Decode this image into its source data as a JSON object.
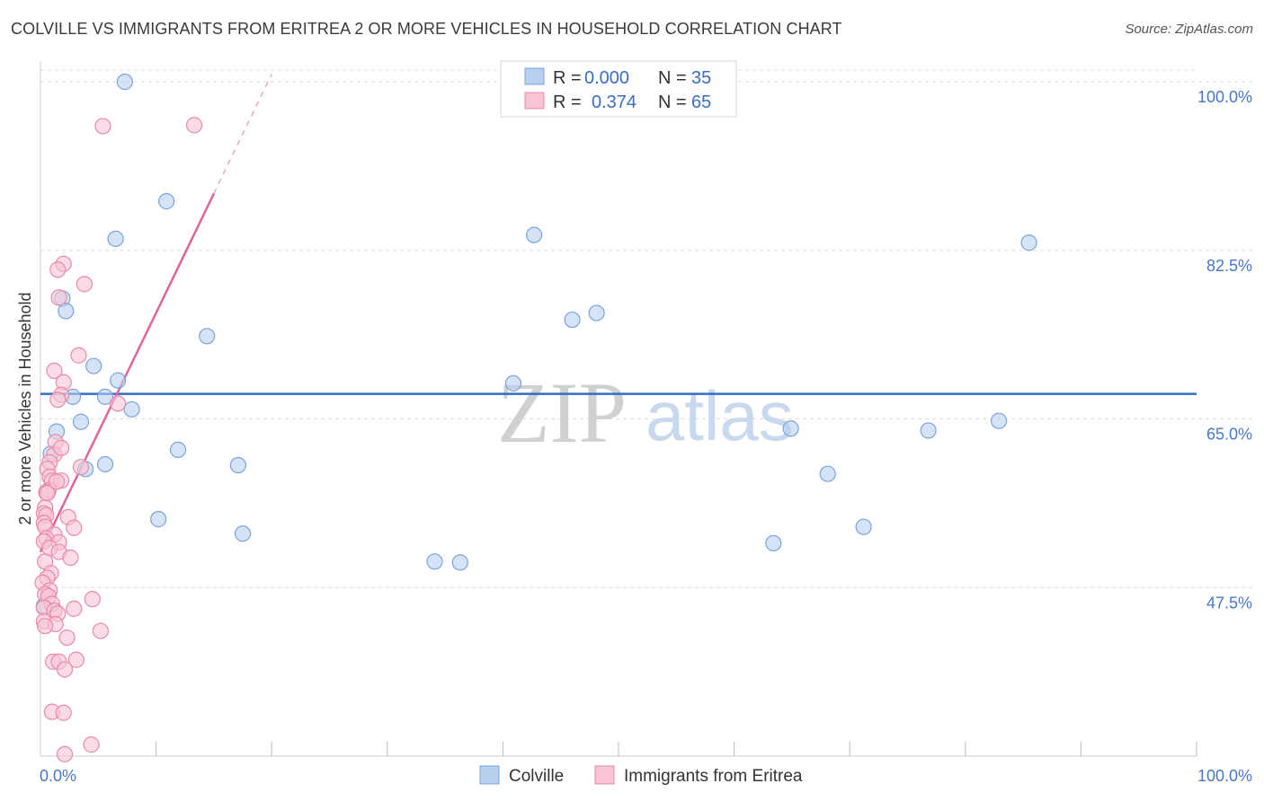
{
  "title": "COLVILLE VS IMMIGRANTS FROM ERITREA 2 OR MORE VEHICLES IN HOUSEHOLD CORRELATION CHART",
  "source": "Source: ZipAtlas.com",
  "watermark": {
    "part1": "ZIP",
    "part2": "atlas"
  },
  "colors": {
    "blue_fill": "#b8d0f0",
    "blue_stroke": "#7aa3e0",
    "blue_line": "#2f6fc8",
    "pink_fill": "#f8c4d4",
    "pink_stroke": "#e88aa8",
    "pink_line": "#e0649a",
    "grid": "#dddddd",
    "tick_text": "#4a78c8"
  },
  "legend": {
    "r_label": "R =",
    "n_label": "N =",
    "rows": [
      {
        "r": "0.000",
        "n": "35"
      },
      {
        "r": "0.374",
        "n": "65"
      }
    ]
  },
  "bottom_legend": [
    "Colville",
    "Immigrants from Eritrea"
  ],
  "chart_data": {
    "type": "scatter",
    "xlabel": "",
    "ylabel": "2 or more Vehicles in Household",
    "xlim": [
      0,
      100
    ],
    "ylim": [
      30,
      101.5
    ],
    "x_tick_labels": [
      "0.0%",
      "100.0%"
    ],
    "y_ticks": [
      47.5,
      65.0,
      82.5,
      100.0
    ],
    "y_tick_labels": [
      "47.5%",
      "65.0%",
      "82.5%",
      "100.0%"
    ],
    "grid": true,
    "series": [
      {
        "name": "Colville",
        "points": [
          [
            7.3,
            100.0
          ],
          [
            53.5,
            100.0
          ],
          [
            10.9,
            87.6
          ],
          [
            6.5,
            83.7
          ],
          [
            42.7,
            84.1
          ],
          [
            85.5,
            83.3
          ],
          [
            1.9,
            77.5
          ],
          [
            2.2,
            76.2
          ],
          [
            14.4,
            73.6
          ],
          [
            46.0,
            75.3
          ],
          [
            48.1,
            76.0
          ],
          [
            4.6,
            70.5
          ],
          [
            6.7,
            69.0
          ],
          [
            5.6,
            67.3
          ],
          [
            2.8,
            67.3
          ],
          [
            7.9,
            66.0
          ],
          [
            40.9,
            68.7
          ],
          [
            1.4,
            63.7
          ],
          [
            3.5,
            64.7
          ],
          [
            64.9,
            64.0
          ],
          [
            76.8,
            63.8
          ],
          [
            82.9,
            64.8
          ],
          [
            11.9,
            61.8
          ],
          [
            0.9,
            61.4
          ],
          [
            5.6,
            60.3
          ],
          [
            3.9,
            59.8
          ],
          [
            17.1,
            60.2
          ],
          [
            68.1,
            59.3
          ],
          [
            10.2,
            54.6
          ],
          [
            17.5,
            53.1
          ],
          [
            71.2,
            53.8
          ],
          [
            63.4,
            52.1
          ],
          [
            34.1,
            50.2
          ],
          [
            36.3,
            50.1
          ],
          [
            0.3,
            45.6
          ]
        ]
      },
      {
        "name": "Immigrants from Eritrea",
        "points": [
          [
            5.4,
            95.4
          ],
          [
            13.3,
            95.5
          ],
          [
            2.0,
            81.1
          ],
          [
            1.5,
            80.5
          ],
          [
            3.8,
            79.0
          ],
          [
            1.6,
            77.6
          ],
          [
            3.3,
            71.6
          ],
          [
            1.2,
            70.0
          ],
          [
            2.0,
            68.8
          ],
          [
            1.8,
            67.5
          ],
          [
            1.5,
            67.0
          ],
          [
            6.7,
            66.6
          ],
          [
            1.3,
            62.6
          ],
          [
            1.2,
            61.3
          ],
          [
            0.8,
            60.5
          ],
          [
            3.5,
            60.0
          ],
          [
            0.6,
            59.8
          ],
          [
            0.8,
            59.0
          ],
          [
            1.0,
            58.6
          ],
          [
            1.8,
            58.6
          ],
          [
            0.7,
            57.6
          ],
          [
            0.5,
            57.4
          ],
          [
            0.4,
            55.8
          ],
          [
            0.3,
            55.2
          ],
          [
            0.5,
            55.0
          ],
          [
            2.4,
            54.8
          ],
          [
            0.3,
            54.2
          ],
          [
            0.4,
            53.8
          ],
          [
            2.9,
            53.7
          ],
          [
            1.2,
            53.0
          ],
          [
            0.5,
            52.6
          ],
          [
            0.3,
            52.3
          ],
          [
            1.6,
            52.2
          ],
          [
            0.8,
            51.6
          ],
          [
            1.6,
            51.2
          ],
          [
            2.6,
            50.6
          ],
          [
            0.4,
            50.2
          ],
          [
            0.9,
            49.0
          ],
          [
            0.6,
            48.5
          ],
          [
            0.2,
            48.0
          ],
          [
            0.8,
            47.2
          ],
          [
            0.4,
            46.8
          ],
          [
            0.7,
            46.6
          ],
          [
            4.5,
            46.3
          ],
          [
            1.0,
            45.8
          ],
          [
            0.3,
            45.4
          ],
          [
            2.9,
            45.3
          ],
          [
            1.2,
            45.1
          ],
          [
            1.5,
            44.8
          ],
          [
            0.3,
            44.0
          ],
          [
            1.3,
            43.7
          ],
          [
            5.2,
            43.0
          ],
          [
            2.3,
            42.3
          ],
          [
            0.4,
            43.5
          ],
          [
            1.1,
            39.8
          ],
          [
            1.6,
            39.8
          ],
          [
            3.1,
            40.0
          ],
          [
            2.1,
            39.0
          ],
          [
            1.0,
            34.6
          ],
          [
            2.0,
            34.5
          ],
          [
            4.4,
            31.2
          ],
          [
            2.1,
            30.2
          ],
          [
            1.8,
            62.0
          ],
          [
            0.6,
            57.3
          ],
          [
            1.4,
            58.5
          ]
        ]
      }
    ],
    "trend_lines": [
      {
        "series": "Colville",
        "x": [
          0,
          100
        ],
        "y": [
          67.6,
          67.6
        ]
      },
      {
        "series": "Immigrants from Eritrea",
        "x": [
          0,
          15
        ],
        "y": [
          51.2,
          88.4
        ],
        "dashed_extension_x": [
          15,
          20
        ],
        "dashed_extension_y": [
          88.4,
          100.8
        ]
      }
    ]
  }
}
